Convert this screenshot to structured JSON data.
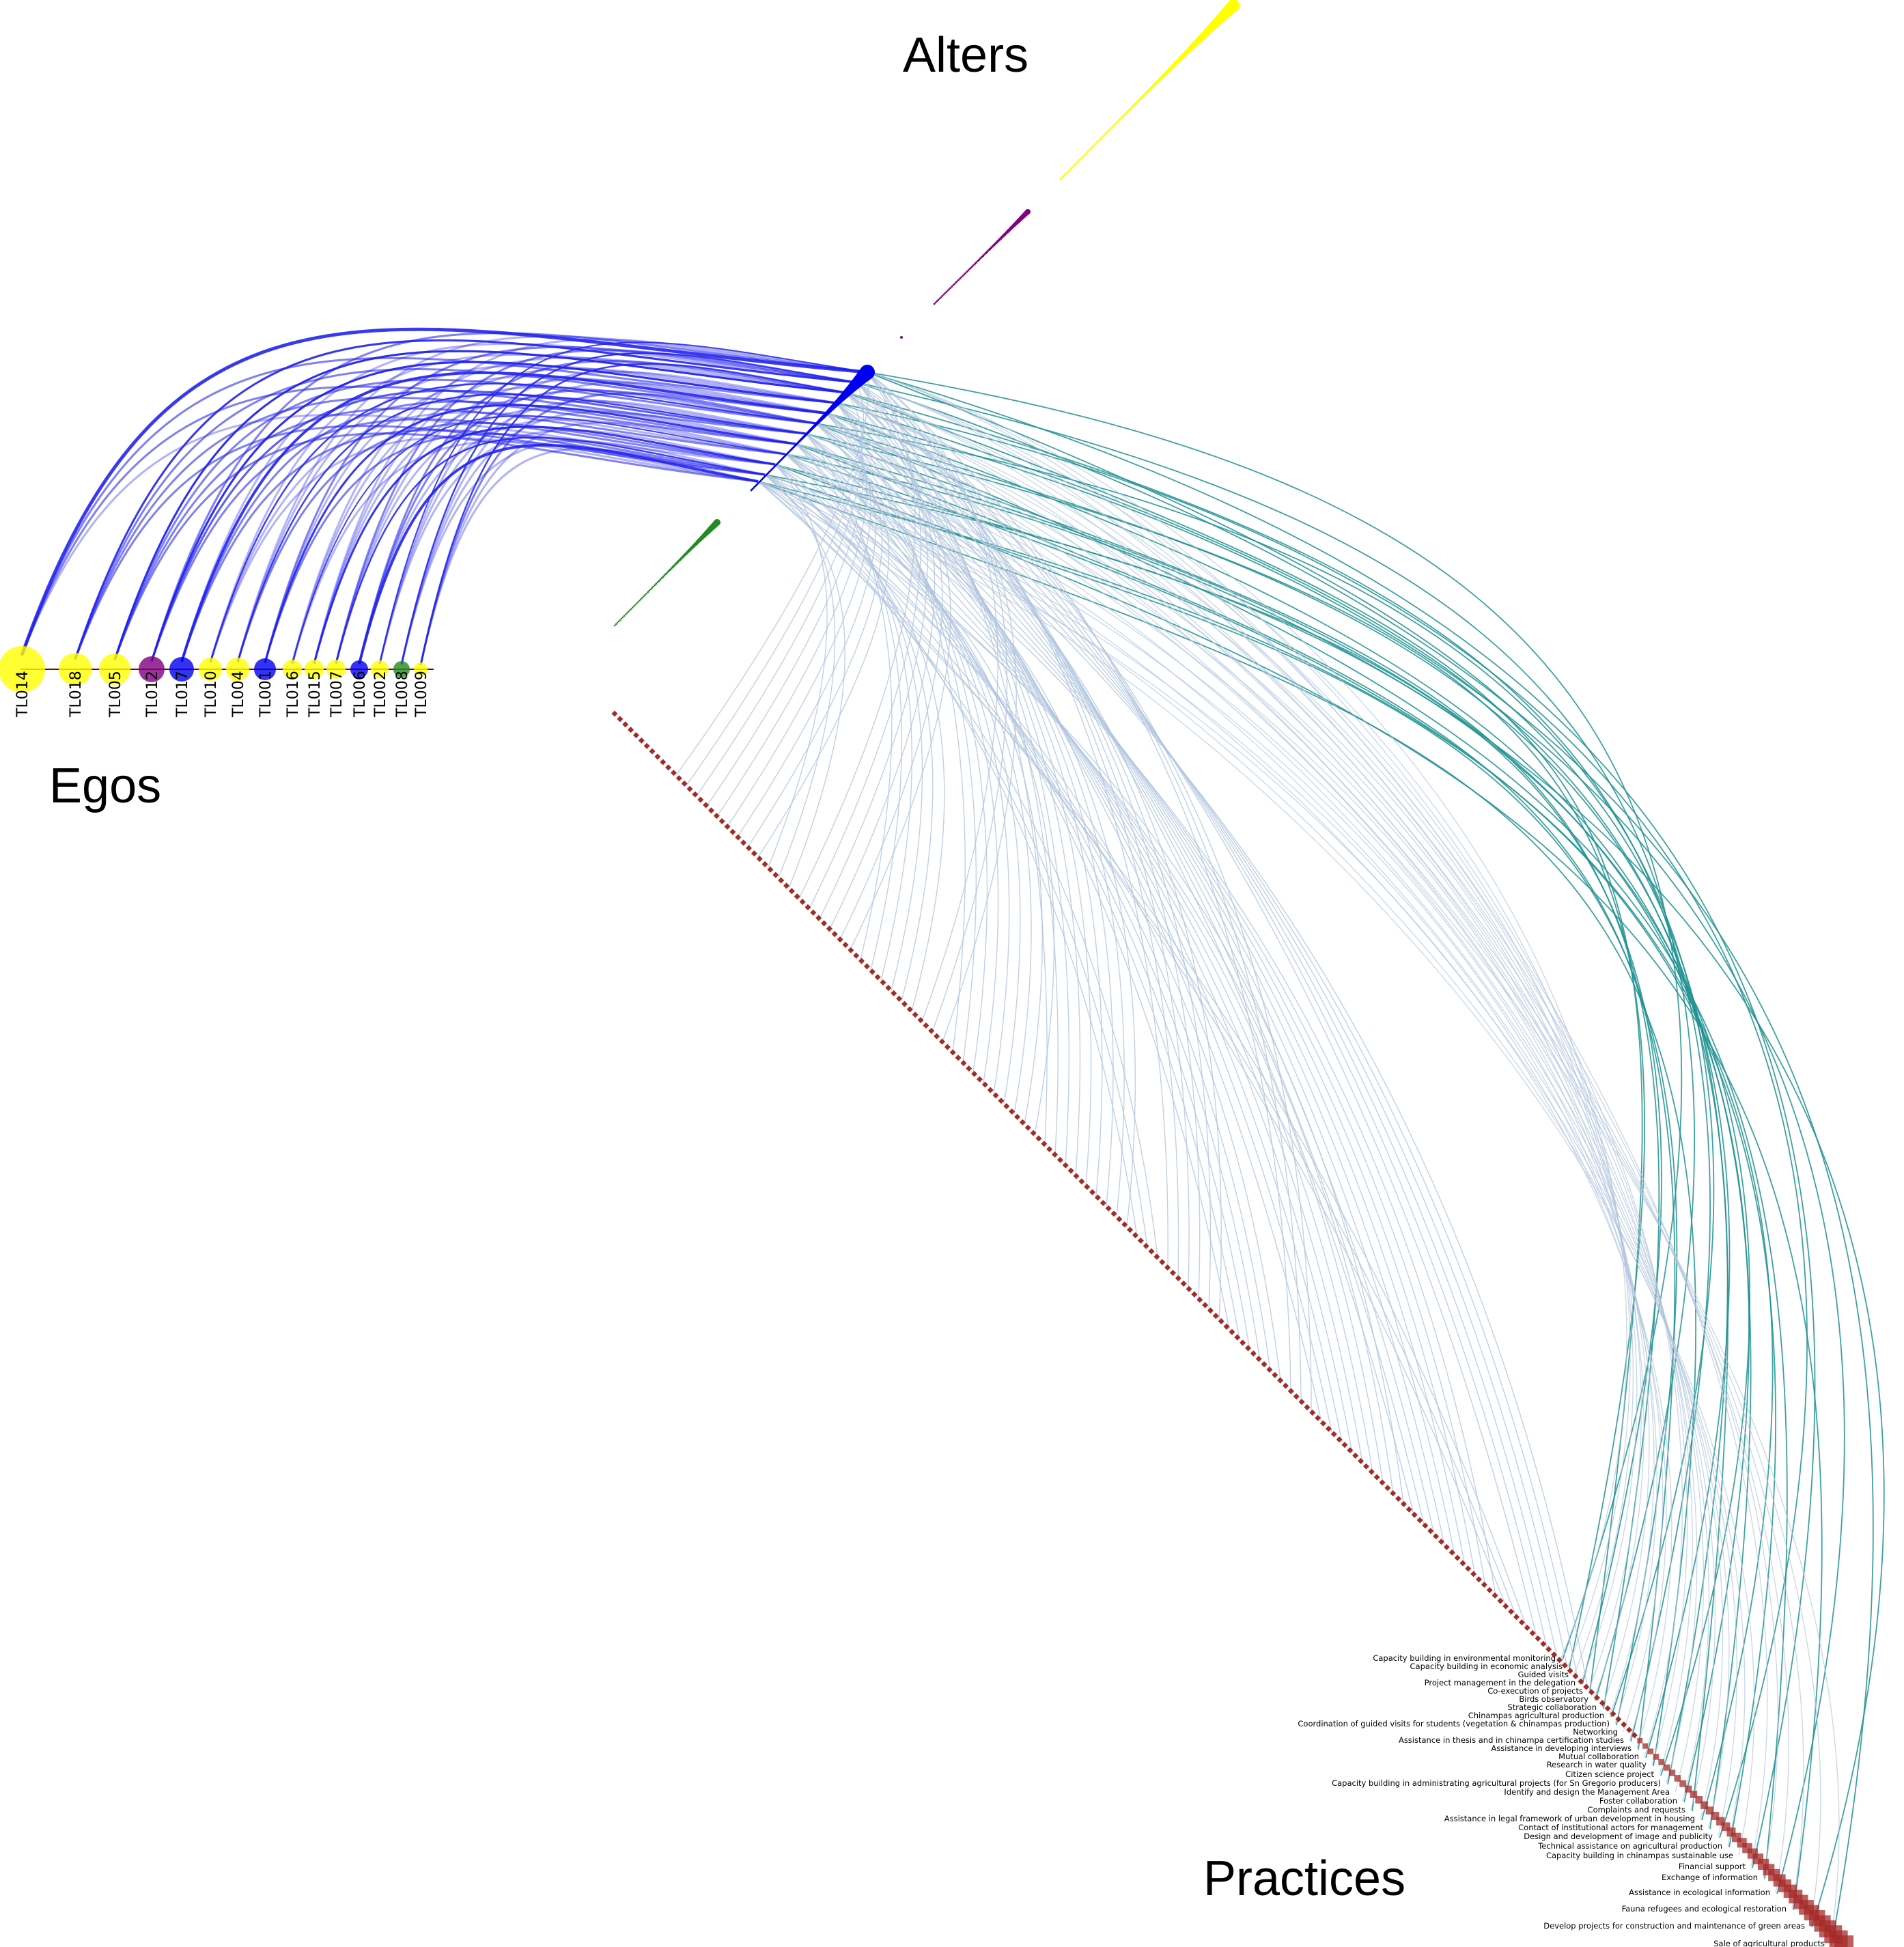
{
  "titles": {
    "alters": "Alters",
    "egos": "Egos",
    "practices": "Practices"
  },
  "colors": {
    "yellow": "#ffff00",
    "purple": "#800080",
    "blue": "#0000ee",
    "green": "#228b22",
    "practice": "#a52a2a",
    "edge_ego_alter": "#2222ee",
    "edge_alter_practice": "#b0c4de",
    "edge_teal": "#1e9090"
  },
  "egos": [
    {
      "id": "TL014",
      "color": "yellow",
      "size": 34,
      "alpha": 0.8
    },
    {
      "id": "TL018",
      "color": "yellow",
      "size": 24,
      "alpha": 0.8
    },
    {
      "id": "TL005",
      "color": "yellow",
      "size": 23,
      "alpha": 0.8
    },
    {
      "id": "TL012",
      "color": "purple",
      "size": 19,
      "alpha": 0.8
    },
    {
      "id": "TL017",
      "color": "blue",
      "size": 18,
      "alpha": 0.8
    },
    {
      "id": "TL010",
      "color": "yellow",
      "size": 17,
      "alpha": 0.8
    },
    {
      "id": "TL004",
      "color": "yellow",
      "size": 17,
      "alpha": 0.8
    },
    {
      "id": "TL001",
      "color": "blue",
      "size": 16,
      "alpha": 0.8
    },
    {
      "id": "TL016",
      "color": "yellow",
      "size": 14,
      "alpha": 0.8
    },
    {
      "id": "TL015",
      "color": "yellow",
      "size": 14,
      "alpha": 0.8
    },
    {
      "id": "TL007",
      "color": "yellow",
      "size": 14,
      "alpha": 0.8
    },
    {
      "id": "TL006",
      "color": "blue",
      "size": 13,
      "alpha": 0.8
    },
    {
      "id": "TL002",
      "color": "yellow",
      "size": 13,
      "alpha": 0.8
    },
    {
      "id": "TL008",
      "color": "green",
      "size": 12,
      "alpha": 0.8
    },
    {
      "id": "TL009",
      "color": "yellow",
      "size": 10,
      "alpha": 0.8
    }
  ],
  "practices": [
    "Capacity building in environmental monitoring",
    "Capacity building in economic analysis",
    "Guided visits",
    "Project management in the delegation",
    "Co-execution of projects",
    "Birds observatory",
    "Strategic collaboration",
    "Chinampas agricultural production",
    "Coordination of guided visits for students (vegetation & chinampas production)",
    "Networking",
    "Assistance in thesis and in chinampa certification studies",
    "Assistance in developing interviews",
    "Mutual collaboration",
    "Research in water quality",
    "Citizen science project",
    "Capacity building in administrating agricultural projects (for Sn Gregorio producers)",
    "Identify and design the Management Area",
    "Foster collaboration",
    "Complaints and requests",
    "Assistance in legal framework of urban development in housing",
    "Contact of institutional actors for management",
    "Design and development of image and publicity",
    "Technical assistance on agricultural production",
    "Capacity building in chinampas sustainable use",
    "Financial support",
    "Exchange of information",
    "Assistance in ecological information",
    "Fauna refugees and ecological restoration",
    "Develop projects for construction and maintenance of green areas",
    "Sale of agricultural products"
  ]
}
